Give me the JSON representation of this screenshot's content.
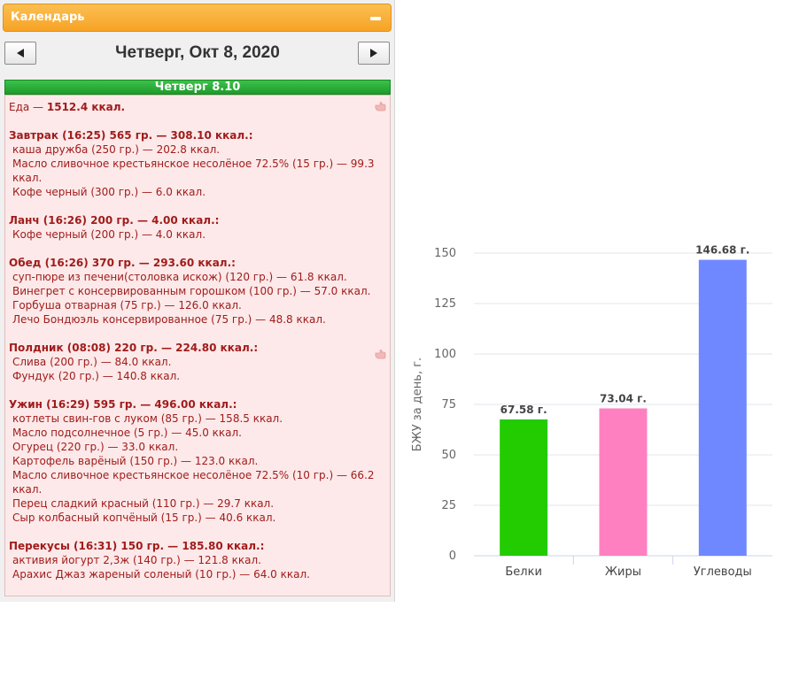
{
  "calendar": {
    "title": "Календарь",
    "date_title": "Четверг, Окт 8, 2020",
    "day_bar": "Четверг 8.10"
  },
  "summary": {
    "prefix": "Еда — ",
    "value": "1512.4 ккал."
  },
  "meals": [
    {
      "header": "Завтрак (16:25) 565 гр. — 308.10 ккал.:",
      "items": [
        "каша дружба (250 гр.) — 202.8 ккал.",
        "Масло сливочное крестьянское несолёное 72.5% (15 гр.) — 99.3 ккал.",
        "Кофе черный (300 гр.) — 6.0 ккал."
      ]
    },
    {
      "header": "Ланч (16:26) 200 гр. — 4.00 ккал.:",
      "items": [
        "Кофе черный (200 гр.) — 4.0 ккал."
      ]
    },
    {
      "header": "Обед (16:26) 370 гр. — 293.60 ккал.:",
      "items": [
        "суп-пюре из печени(столовка искож) (120 гр.) — 61.8 ккал.",
        "Винегрет с консервированным горошком (100 гр.) — 57.0 ккал.",
        "Горбуша отварная (75 гр.) — 126.0 ккал.",
        "Лечо Бондюэль консервированное (75 гр.) — 48.8 ккал."
      ]
    },
    {
      "header": "Полдник (08:08) 220 гр. — 224.80 ккал.:",
      "items": [
        "Слива (200 гр.) — 84.0 ккал.",
        "Фундук (20 гр.) — 140.8 ккал."
      ]
    },
    {
      "header": "Ужин (16:29) 595 гр. — 496.00 ккал.:",
      "items": [
        "котлеты свин-гов с луком (85 гр.) — 158.5 ккал.",
        "Масло подсолнечное (5 гр.) — 45.0 ккал.",
        "Огурец (220 гр.) — 33.0 ккал.",
        "Картофель варёный (150 гр.) — 123.0 ккал.",
        "Масло сливочное крестьянское несолёное 72.5% (10 гр.) — 66.2 ккал.",
        "Перец сладкий красный (110 гр.) — 29.7 ккал.",
        "Сыр колбасный копчёный (15 гр.) — 40.6 ккал."
      ]
    },
    {
      "header": "Перекусы (16:31) 150 гр. — 185.80 ккал.:",
      "items": [
        "активия йогурт 2,3ж (140 гр.) — 121.8 ккал.",
        "Арахис Джаз жареный соленый (10 гр.) — 64.0 ккал."
      ]
    }
  ],
  "icons": {
    "prev": "arrow-left-icon",
    "next": "arrow-right-icon",
    "collapse": "minus-icon",
    "hand": "pointing-hand-icon"
  },
  "colors": {
    "header_orange": "#f7a325",
    "day_bar_green": "#1e9b2c",
    "meal_text": "#a01c1c",
    "meal_bg": "#fde9e9"
  },
  "chart_data": {
    "type": "bar",
    "categories": [
      "Белки",
      "Жиры",
      "Углеводы"
    ],
    "values": [
      67.58,
      73.04,
      146.68
    ],
    "data_labels": [
      "67.58 г.",
      "73.04 г.",
      "146.68 г."
    ],
    "colors": [
      "#22cc00",
      "#ff80c0",
      "#7088ff"
    ],
    "title": "",
    "xlabel": "",
    "ylabel": "БЖУ за день, г.",
    "ylim": [
      0,
      150
    ],
    "yticks": [
      0,
      25,
      50,
      75,
      100,
      125,
      150
    ],
    "grid": true,
    "legend": "none"
  }
}
